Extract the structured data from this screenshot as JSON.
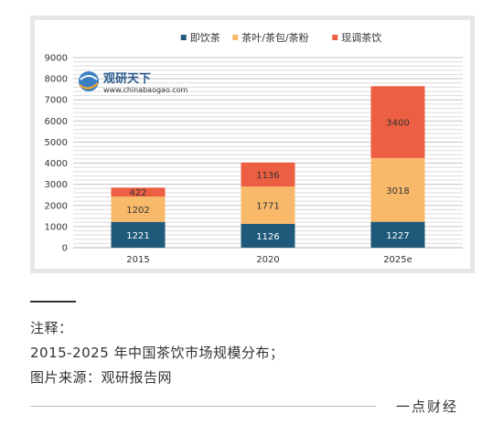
{
  "chart_data": {
    "type": "bar",
    "stacked": true,
    "categories": [
      "2015",
      "2020",
      "2025e"
    ],
    "series": [
      {
        "name": "即饮茶",
        "color": "#1f5a7a",
        "values": [
          1221,
          1126,
          1227
        ]
      },
      {
        "name": "茶叶/茶包/茶粉",
        "color": "#f9b96b",
        "values": [
          1202,
          1771,
          3018
        ]
      },
      {
        "name": "现调茶饮",
        "color": "#ed5f42",
        "values": [
          422,
          1136,
          3400
        ]
      }
    ],
    "ylim": [
      0,
      9000
    ],
    "yticks": [
      "0",
      "1000",
      "2000",
      "3000",
      "4000",
      "5000",
      "6000",
      "7000",
      "8000",
      "9000"
    ],
    "grid": true,
    "legend_position": "top-center"
  },
  "watermark": {
    "name": "观研天下",
    "url": "www.chinabaogao.com"
  },
  "caption": {
    "label": "注释：",
    "line1": "2015-2025 年中国茶饮市场规模分布；",
    "line2": "图片来源：观研报告网"
  },
  "brand": "一点财经"
}
